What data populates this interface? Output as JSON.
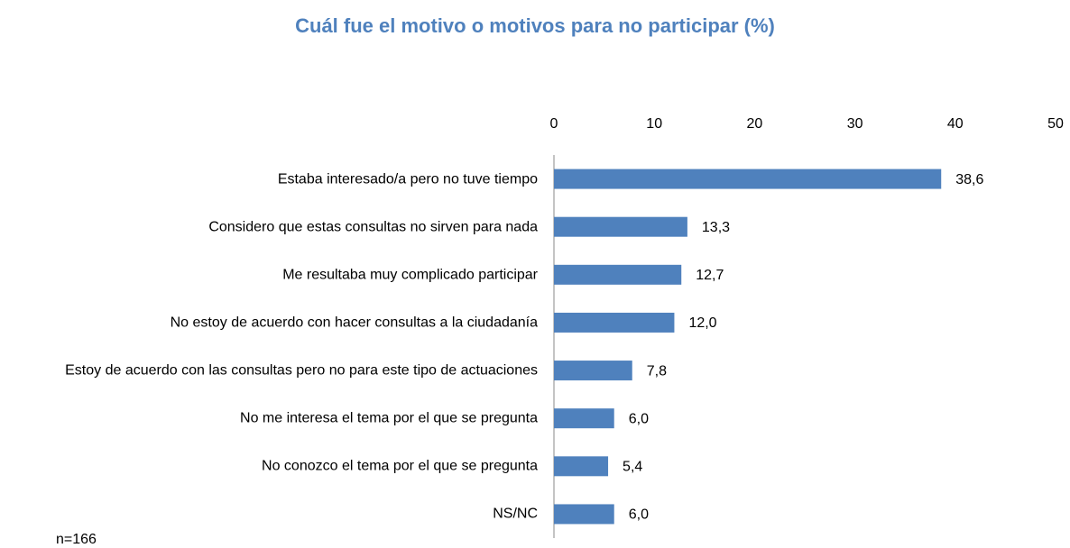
{
  "chart_data": {
    "type": "hbar",
    "title": "Cuál fue el motivo o motivos para no participar  (%)",
    "categories": [
      "Estaba interesado/a pero no tuve tiempo",
      "Considero que estas consultas no sirven para nada",
      "Me resultaba muy complicado participar",
      "No estoy de acuerdo con hacer consultas a la ciudadanía",
      "Estoy de acuerdo con las consultas pero no  para este tipo de actuaciones",
      "No me interesa el tema por el que se pregunta",
      "No conozco el tema por el que se pregunta",
      "NS/NC"
    ],
    "values": [
      38.6,
      13.3,
      12.7,
      12.0,
      7.8,
      6.0,
      5.4,
      6.0
    ],
    "value_labels": [
      "38,6",
      "13,3",
      "12,7",
      "12,0",
      "7,8",
      "6,0",
      "5,4",
      "6,0"
    ],
    "color": "#4f81bd",
    "xlim": [
      0,
      50
    ],
    "xticks": [
      0,
      10,
      20,
      30,
      40,
      50
    ],
    "note": "n=166"
  }
}
